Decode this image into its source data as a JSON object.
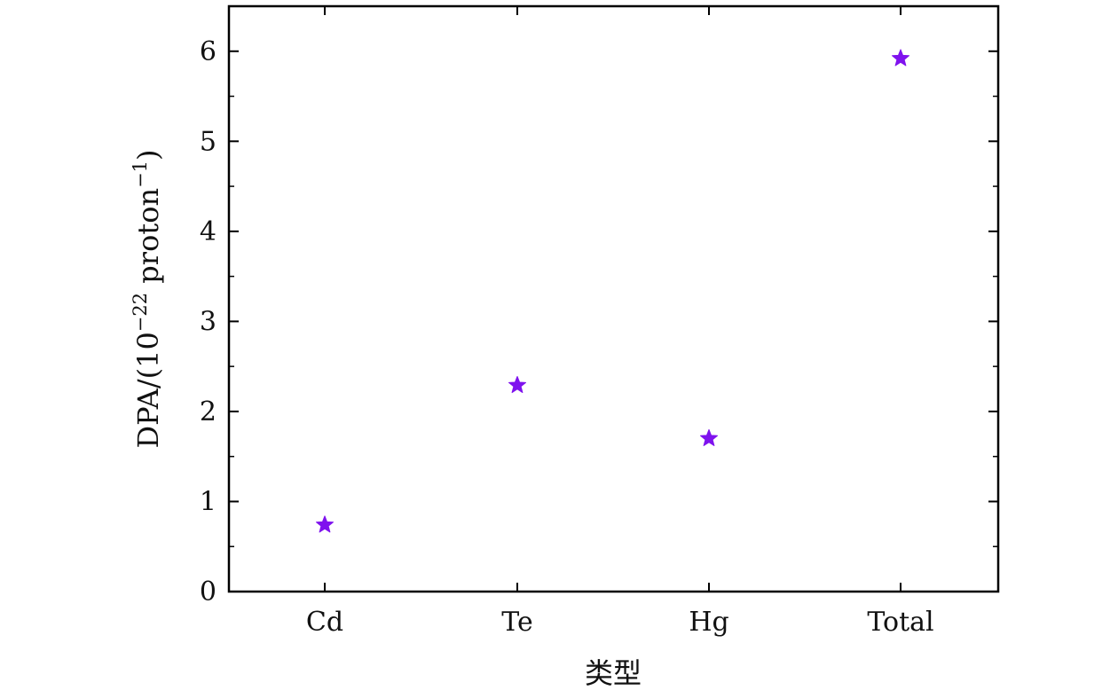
{
  "chart_data": {
    "type": "scatter",
    "categories": [
      "Cd",
      "Te",
      "Hg",
      "Total"
    ],
    "values": [
      0.75,
      2.3,
      1.71,
      5.93
    ],
    "xlabel": "类型",
    "ylabel_main": "DPA/(10",
    "ylabel_exponent": "−22",
    "ylabel_rest": " proton",
    "ylabel_unit_exponent": "−1",
    "ylabel_close": ")",
    "ylim": [
      0,
      6.5
    ],
    "yticks": [
      0,
      1,
      2,
      3,
      4,
      5,
      6
    ],
    "ytick_labels": [
      "0",
      "1",
      "2",
      "3",
      "4",
      "5",
      "6"
    ],
    "marker": "star",
    "marker_color": "#7f12ee",
    "axis_color": "#000000",
    "grid": false,
    "legend": "none"
  }
}
